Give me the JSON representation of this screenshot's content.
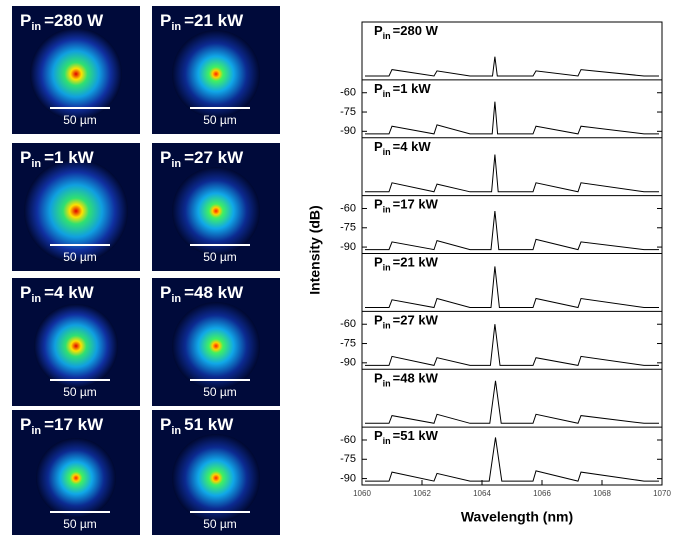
{
  "beam_profiles": [
    {
      "symbol": "P",
      "subscript": "in",
      "power": "=280 W",
      "scale_bar": "50 µm"
    },
    {
      "symbol": "P",
      "subscript": "in",
      "power": "=1 kW",
      "scale_bar": "50 µm"
    },
    {
      "symbol": "P",
      "subscript": "in",
      "power": "=4 kW",
      "scale_bar": "50 µm"
    },
    {
      "symbol": "P",
      "subscript": "in",
      "power": "=17 kW",
      "scale_bar": "50 µm"
    },
    {
      "symbol": "P",
      "subscript": "in",
      "power": "=21 kW",
      "scale_bar": "50 µm"
    },
    {
      "symbol": "P",
      "subscript": "in",
      "power": "=27 kW",
      "scale_bar": "50 µm"
    },
    {
      "symbol": "P",
      "subscript": "in",
      "power": "=48 kW",
      "scale_bar": "50 µm"
    },
    {
      "symbol": "P",
      "subscript": "in",
      "power": "51 kW",
      "scale_bar": "50 µm"
    }
  ],
  "chart_data": {
    "type": "line",
    "xlabel": "Wavelength (nm)",
    "ylabel": "Intensity (dB)",
    "xlim": [
      1060,
      1070
    ],
    "xticks": [
      1060,
      1062,
      1064,
      1066,
      1068,
      1070
    ],
    "color": "#000000",
    "panels": [
      {
        "symbol": "P",
        "subscript": "in",
        "power": "=280 W",
        "ylim": [
          -95,
          -50
        ],
        "x": [
          1060.1,
          1060.9,
          1061.0,
          1062.4,
          1062.5,
          1063.6,
          1064.35,
          1064.43,
          1064.51,
          1065.7,
          1065.8,
          1067.2,
          1067.3,
          1069.4,
          1069.9
        ],
        "values": [
          -92,
          -92,
          -87,
          -92,
          -88,
          -92,
          -92,
          -77,
          -92,
          -92,
          -88,
          -92,
          -87,
          -92,
          -92
        ]
      },
      {
        "symbol": "P",
        "subscript": "in",
        "power": "=1 kW",
        "ylim": [
          -95,
          -50
        ],
        "yticks": [
          -60,
          -75,
          -90
        ],
        "x": [
          1060.1,
          1060.9,
          1061.0,
          1062.4,
          1062.5,
          1063.6,
          1064.34,
          1064.43,
          1064.52,
          1065.7,
          1065.8,
          1067.2,
          1067.3,
          1069.4,
          1069.9
        ],
        "values": [
          -92,
          -92,
          -86,
          -92,
          -85,
          -92,
          -92,
          -67,
          -92,
          -92,
          -86,
          -92,
          -86,
          -92,
          -92
        ]
      },
      {
        "symbol": "P",
        "subscript": "in",
        "power": "=4 kW",
        "ylim": [
          -95,
          -50
        ],
        "x": [
          1060.1,
          1060.9,
          1061.0,
          1062.4,
          1062.5,
          1063.6,
          1064.32,
          1064.43,
          1064.54,
          1065.7,
          1065.8,
          1067.2,
          1067.3,
          1069.4,
          1069.9
        ],
        "values": [
          -92,
          -92,
          -85,
          -92,
          -86,
          -92,
          -92,
          -63,
          -92,
          -92,
          -85,
          -92,
          -85,
          -92,
          -92
        ]
      },
      {
        "symbol": "P",
        "subscript": "in",
        "power": "=17 kW",
        "ylim": [
          -95,
          -50
        ],
        "yticks": [
          -60,
          -75,
          -90
        ],
        "x": [
          1060.1,
          1060.9,
          1061.0,
          1062.4,
          1062.5,
          1063.6,
          1064.3,
          1064.43,
          1064.56,
          1065.7,
          1065.8,
          1067.2,
          1067.3,
          1069.4,
          1069.9
        ],
        "values": [
          -92,
          -92,
          -86,
          -92,
          -85,
          -92,
          -92,
          -62,
          -92,
          -92,
          -84,
          -92,
          -86,
          -92,
          -92
        ]
      },
      {
        "symbol": "P",
        "subscript": "in",
        "power": "=21 kW",
        "ylim": [
          -95,
          -50
        ],
        "x": [
          1060.1,
          1060.9,
          1061.0,
          1062.4,
          1062.5,
          1063.6,
          1064.3,
          1064.43,
          1064.58,
          1065.7,
          1065.8,
          1067.2,
          1067.3,
          1069.4,
          1069.9
        ],
        "values": [
          -92,
          -92,
          -86,
          -92,
          -85,
          -92,
          -92,
          -60,
          -92,
          -92,
          -85,
          -92,
          -85,
          -92,
          -92
        ]
      },
      {
        "symbol": "P",
        "subscript": "in",
        "power": "=27 kW",
        "ylim": [
          -95,
          -50
        ],
        "yticks": [
          -60,
          -75,
          -90
        ],
        "x": [
          1060.1,
          1060.9,
          1061.0,
          1062.4,
          1062.5,
          1063.6,
          1064.28,
          1064.43,
          1064.6,
          1065.7,
          1065.8,
          1067.2,
          1067.3,
          1069.4,
          1069.9
        ],
        "values": [
          -92,
          -92,
          -85,
          -92,
          -86,
          -92,
          -92,
          -60,
          -92,
          -92,
          -86,
          -92,
          -85,
          -92,
          -92
        ]
      },
      {
        "symbol": "P",
        "subscript": "in",
        "power": "=48 kW",
        "ylim": [
          -95,
          -50
        ],
        "x": [
          1060.1,
          1060.9,
          1061.0,
          1062.4,
          1062.5,
          1063.6,
          1064.26,
          1064.45,
          1064.64,
          1065.7,
          1065.8,
          1067.2,
          1067.3,
          1069.4,
          1069.9
        ],
        "values": [
          -92,
          -92,
          -86,
          -92,
          -85,
          -92,
          -92,
          -59,
          -92,
          -92,
          -85,
          -92,
          -86,
          -92,
          -92
        ]
      },
      {
        "symbol": "P",
        "subscript": "in",
        "power": "=51 kW",
        "ylim": [
          -95,
          -50
        ],
        "yticks": [
          -60,
          -75,
          -90
        ],
        "x": [
          1060.1,
          1060.9,
          1061.0,
          1062.4,
          1062.5,
          1063.6,
          1064.24,
          1064.45,
          1064.66,
          1065.7,
          1065.8,
          1067.2,
          1067.3,
          1069.4,
          1069.9
        ],
        "values": [
          -92,
          -92,
          -85,
          -92,
          -86,
          -92,
          -92,
          -58,
          -92,
          -92,
          -84,
          -92,
          -85,
          -92,
          -92
        ]
      }
    ]
  }
}
